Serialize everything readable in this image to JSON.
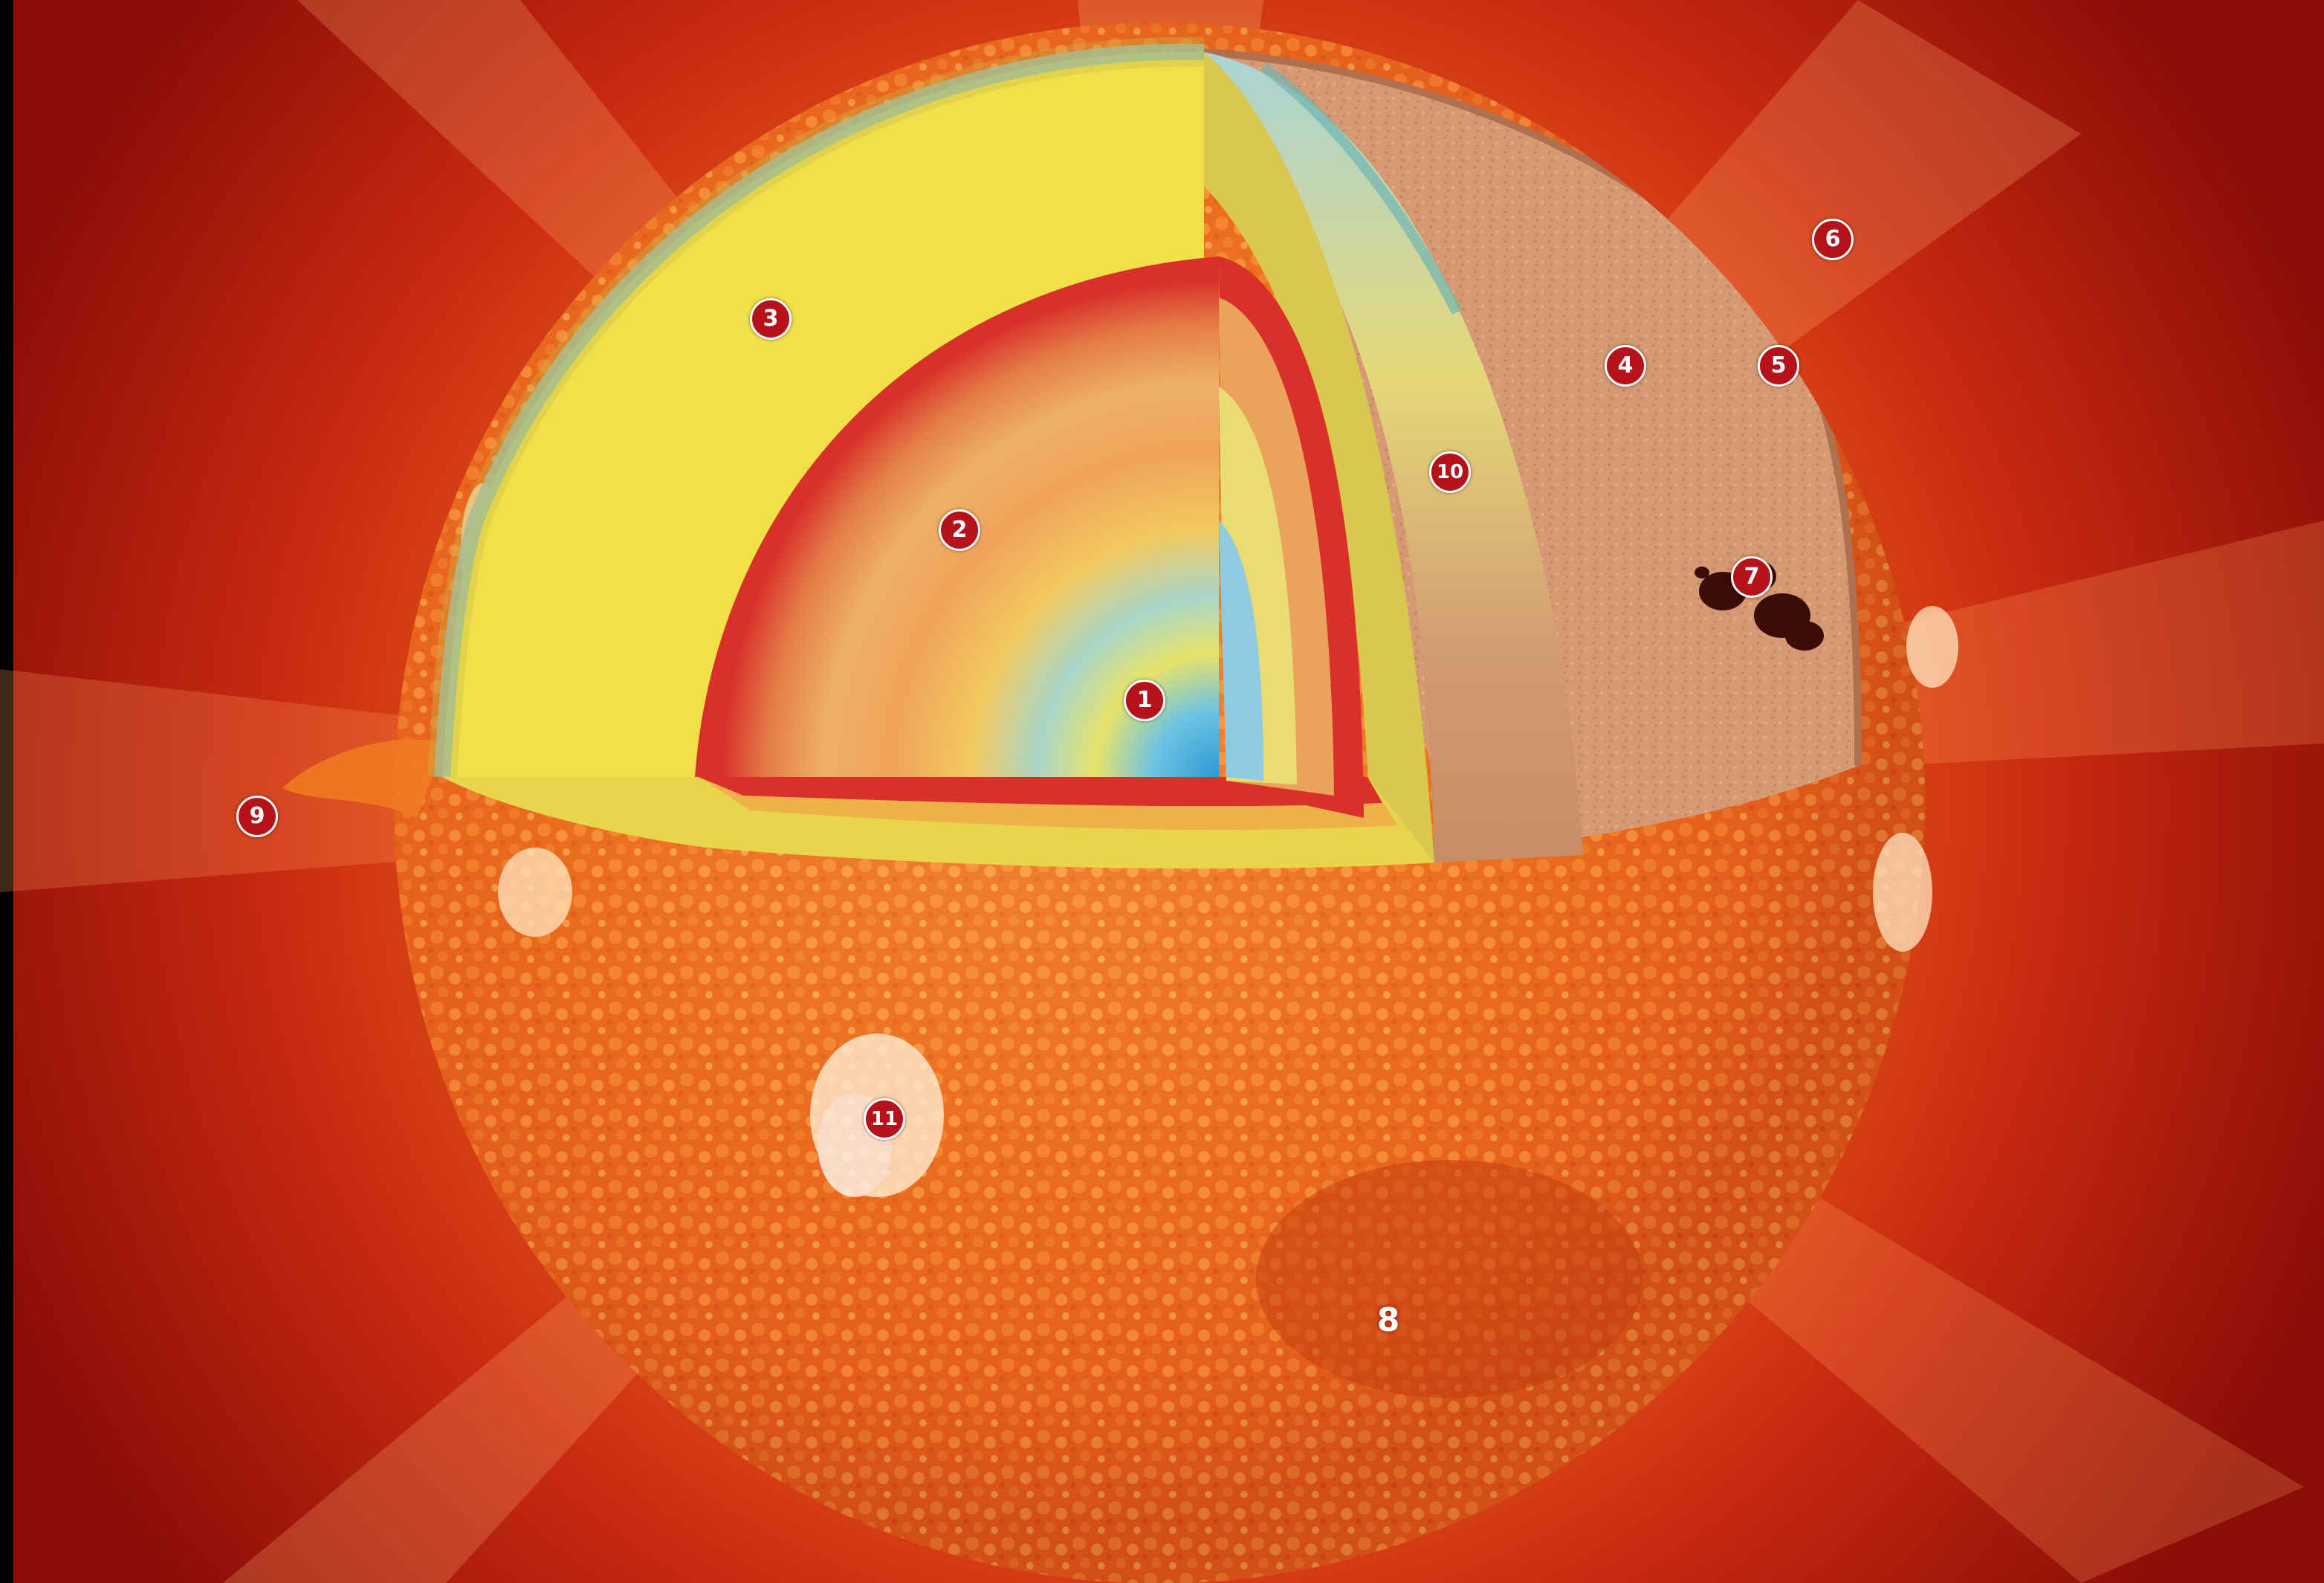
{
  "colors": {
    "corona_outer": "#a4140b",
    "corona_inner": "#ef5a16",
    "surface": "#e8661c",
    "surface_light": "#ffb35c",
    "radiative_zone": "#f1e04a",
    "core_center": "#3aa8d8",
    "band_red": "#d9302a",
    "tachocline": "#a9d4d6",
    "photosphere": "#d59a73",
    "marker": "#b5121b"
  },
  "labels": [
    {
      "id": "label-1",
      "text": "1"
    },
    {
      "id": "label-2",
      "text": "2"
    },
    {
      "id": "label-3",
      "text": "3"
    },
    {
      "id": "label-4",
      "text": "4"
    },
    {
      "id": "label-5",
      "text": "5"
    },
    {
      "id": "label-6",
      "text": "6"
    },
    {
      "id": "label-7",
      "text": "7"
    },
    {
      "id": "label-8",
      "text": "8"
    },
    {
      "id": "label-9",
      "text": "9"
    },
    {
      "id": "label-10",
      "text": "10"
    },
    {
      "id": "label-11",
      "text": "11"
    }
  ]
}
